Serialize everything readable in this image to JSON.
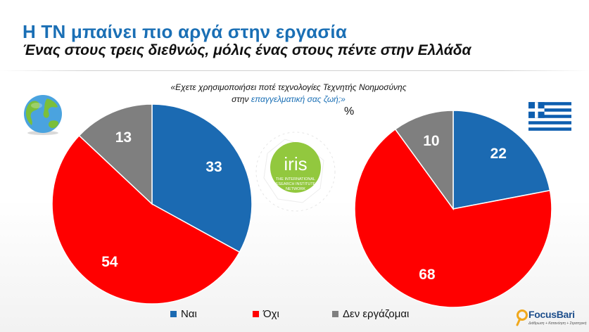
{
  "header": {
    "title": "Η ΤΝ μπαίνει πιο αργά στην εργασία",
    "subtitle": "Ένας στους τρεις διεθνώς, μόλις ένας στους πέντε στην Ελλάδα"
  },
  "question": {
    "line1": "«Εχετε χρησιμοποιήσει ποτέ τεχνολογίες Τεχνητής Νοημοσύνης",
    "line2_prefix": "στην ",
    "line2_highlight": "επαγγελματική σας ζωή;»",
    "unit": "%"
  },
  "watermark": {
    "name": "iris",
    "line1": "THE INTERNATIONAL",
    "line2": "RESEARCH INSTITUTES",
    "line3": "NETWORK"
  },
  "brand": {
    "name": "FocusBari",
    "tagline": "Διάθρωση + Κατανόηση + Στρατηγική"
  },
  "colors": {
    "yes": "#1b6ab2",
    "no": "#ff0000",
    "not_working": "#7f7f7f",
    "title": "#1a6fb5"
  },
  "chart_data": [
    {
      "type": "pie",
      "name": "",
      "labels": [
        "Ναι",
        "Όχι",
        "Δεν εργάζομαι"
      ],
      "values": [
        33,
        54,
        13
      ],
      "colors": [
        "#1b6ab2",
        "#ff0000",
        "#7f7f7f"
      ],
      "start": "12 o'clock, clockwise",
      "icon": "globe-icon",
      "legend": "bottom"
    },
    {
      "type": "pie",
      "name": "",
      "labels": [
        "Ναι",
        "Όχι",
        "Δεν εργάζομαι"
      ],
      "values": [
        22,
        68,
        10
      ],
      "colors": [
        "#1b6ab2",
        "#ff0000",
        "#7f7f7f"
      ],
      "start": "12 o'clock, clockwise",
      "icon": "greek-flag-icon",
      "legend": "bottom"
    }
  ],
  "legend": {
    "items": [
      {
        "label": "Ναι",
        "color": "#1b6ab2"
      },
      {
        "label": "Όχι",
        "color": "#ff0000"
      },
      {
        "label": "Δεν εργάζομαι",
        "color": "#7f7f7f"
      }
    ]
  }
}
